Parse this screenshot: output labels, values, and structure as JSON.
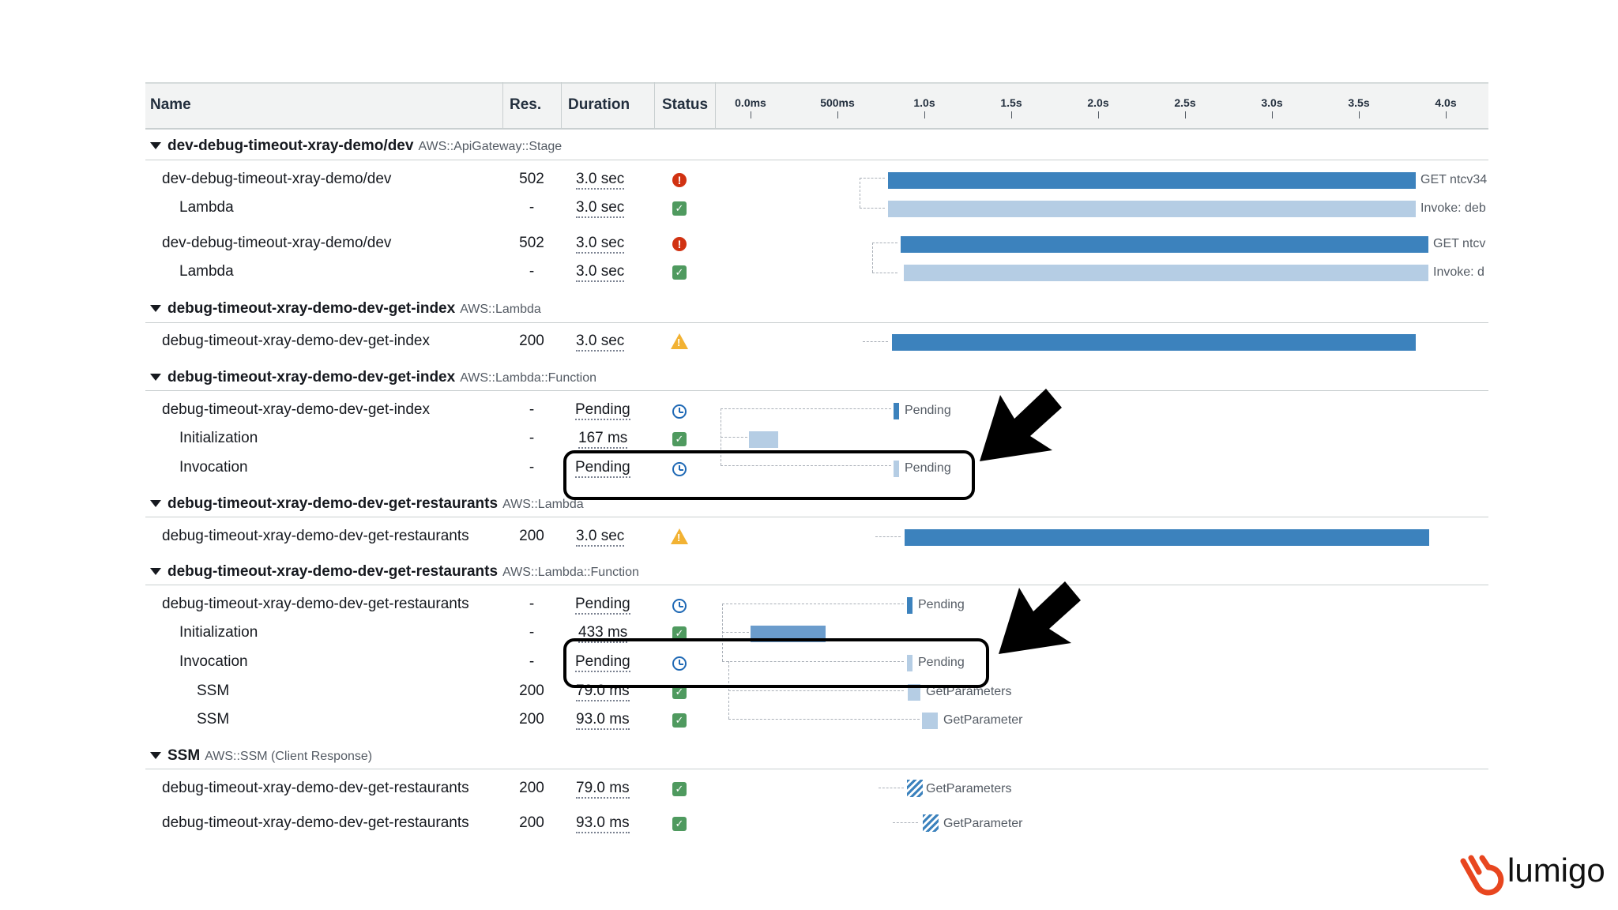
{
  "header": {
    "name": "Name",
    "res": "Res.",
    "duration": "Duration",
    "status": "Status",
    "ticks": [
      "0.0ms",
      "500ms",
      "1.0s",
      "1.5s",
      "2.0s",
      "2.5s",
      "3.0s",
      "3.5s",
      "4.0s"
    ]
  },
  "sections": [
    {
      "name": "dev-debug-timeout-xray-demo/dev",
      "type": "AWS::ApiGateway::Stage"
    },
    {
      "name": "debug-timeout-xray-demo-dev-get-index",
      "type": "AWS::Lambda"
    },
    {
      "name": "debug-timeout-xray-demo-dev-get-index",
      "type": "AWS::Lambda::Function"
    },
    {
      "name": "debug-timeout-xray-demo-dev-get-restaurants",
      "type": "AWS::Lambda"
    },
    {
      "name": "debug-timeout-xray-demo-dev-get-restaurants",
      "type": "AWS::Lambda::Function"
    },
    {
      "name": "SSM",
      "type": "AWS::SSM (Client Response)"
    }
  ],
  "rows": [
    {
      "name": "dev-debug-timeout-xray-demo/dev",
      "res": "502",
      "duration": "3.0 sec",
      "status": "error",
      "bar_label": "GET ntcv34"
    },
    {
      "name": "Lambda",
      "res": "-",
      "duration": "3.0 sec",
      "status": "ok",
      "bar_label": "Invoke: deb"
    },
    {
      "name": "dev-debug-timeout-xray-demo/dev",
      "res": "502",
      "duration": "3.0 sec",
      "status": "error",
      "bar_label": "GET ntcv"
    },
    {
      "name": "Lambda",
      "res": "-",
      "duration": "3.0 sec",
      "status": "ok",
      "bar_label": "Invoke: d"
    },
    {
      "name": "debug-timeout-xray-demo-dev-get-index",
      "res": "200",
      "duration": "3.0 sec",
      "status": "warning",
      "bar_label": ""
    },
    {
      "name": "debug-timeout-xray-demo-dev-get-index",
      "res": "-",
      "duration": "Pending",
      "status": "pending",
      "bar_label": "Pending"
    },
    {
      "name": "Initialization",
      "res": "-",
      "duration": "167 ms",
      "status": "ok",
      "bar_label": ""
    },
    {
      "name": "Invocation",
      "res": "-",
      "duration": "Pending",
      "status": "pending",
      "bar_label": "Pending"
    },
    {
      "name": "debug-timeout-xray-demo-dev-get-restaurants",
      "res": "200",
      "duration": "3.0 sec",
      "status": "warning",
      "bar_label": ""
    },
    {
      "name": "debug-timeout-xray-demo-dev-get-restaurants",
      "res": "-",
      "duration": "Pending",
      "status": "pending",
      "bar_label": "Pending"
    },
    {
      "name": "Initialization",
      "res": "-",
      "duration": "433 ms",
      "status": "ok",
      "bar_label": ""
    },
    {
      "name": "Invocation",
      "res": "-",
      "duration": "Pending",
      "status": "pending",
      "bar_label": "Pending"
    },
    {
      "name": "SSM",
      "res": "200",
      "duration": "79.0 ms",
      "status": "ok",
      "bar_label": "GetParameters"
    },
    {
      "name": "SSM",
      "res": "200",
      "duration": "93.0 ms",
      "status": "ok",
      "bar_label": "GetParameter"
    },
    {
      "name": "debug-timeout-xray-demo-dev-get-restaurants",
      "res": "200",
      "duration": "79.0 ms",
      "status": "ok",
      "bar_label": "GetParameters"
    },
    {
      "name": "debug-timeout-xray-demo-dev-get-restaurants",
      "res": "200",
      "duration": "93.0 ms",
      "status": "ok",
      "bar_label": "GetParameter"
    }
  ],
  "colors": {
    "bar_dark": "#3c82bd",
    "bar_light": "#b5cde4",
    "error": "#d13212",
    "ok": "#4f9a5f",
    "pending": "#1f69b5",
    "warning": "#f2b233",
    "logo": "#e8461f"
  },
  "logo": {
    "text": "lumigo"
  }
}
